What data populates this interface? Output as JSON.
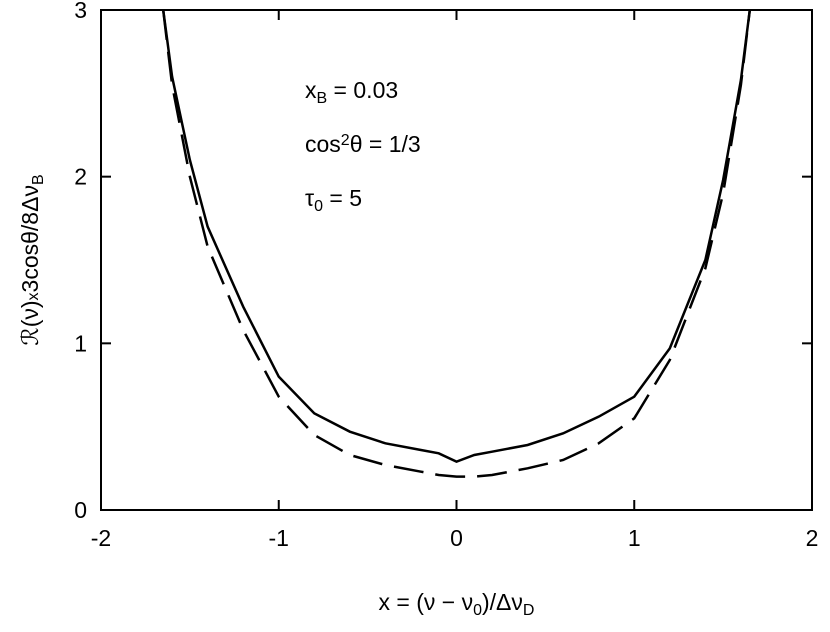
{
  "chart_data": {
    "type": "line",
    "x": [
      -1.65,
      -1.6,
      -1.5,
      -1.4,
      -1.2,
      -1.0,
      -0.8,
      -0.6,
      -0.4,
      -0.2,
      -0.1,
      0,
      0.1,
      0.2,
      0.4,
      0.6,
      0.8,
      1.0,
      1.2,
      1.4,
      1.5,
      1.6,
      1.65
    ],
    "series": [
      {
        "color": "#000000",
        "dash": "solid",
        "values": [
          3,
          2.6,
          2.1,
          1.7,
          1.22,
          0.8,
          0.58,
          0.47,
          0.4,
          0.36,
          0.34,
          0.29,
          0.33,
          0.35,
          0.39,
          0.46,
          0.56,
          0.68,
          0.97,
          1.5,
          1.98,
          2.58,
          3
        ]
      },
      {
        "color": "#000000",
        "dash": "dashed",
        "values": [
          3,
          2.55,
          2.0,
          1.58,
          1.08,
          0.68,
          0.45,
          0.33,
          0.27,
          0.23,
          0.21,
          0.2,
          0.2,
          0.21,
          0.25,
          0.3,
          0.4,
          0.55,
          0.9,
          1.45,
          1.9,
          2.55,
          3
        ]
      }
    ],
    "xlim": [
      -2,
      2
    ],
    "xticks": [
      -2,
      -1,
      0,
      1,
      2
    ],
    "ylim": [
      0,
      3
    ],
    "yticks": [
      0,
      1,
      2,
      3
    ],
    "xlabel": [
      {
        "text": "x = (ν − ν"
      },
      {
        "text": "0",
        "script": "sub"
      },
      {
        "text": ")/Δν"
      },
      {
        "text": "D",
        "script": "sub"
      }
    ],
    "ylabel": [
      {
        "text": "ℛ(ν)"
      },
      {
        "text": "x",
        "script": "small"
      },
      {
        "text": "3cosθ/8Δν"
      },
      {
        "text": "B",
        "script": "sub"
      }
    ],
    "annotations": [
      [
        {
          "text": "x"
        },
        {
          "text": "B",
          "script": "sub"
        },
        {
          "text": " = 0.03"
        }
      ],
      [
        {
          "text": "cos"
        },
        {
          "text": "2",
          "script": "sup"
        },
        {
          "text": "θ = 1/3"
        }
      ],
      [
        {
          "text": "τ"
        },
        {
          "text": "0",
          "script": "sub"
        },
        {
          "text": " = 5"
        }
      ]
    ]
  }
}
